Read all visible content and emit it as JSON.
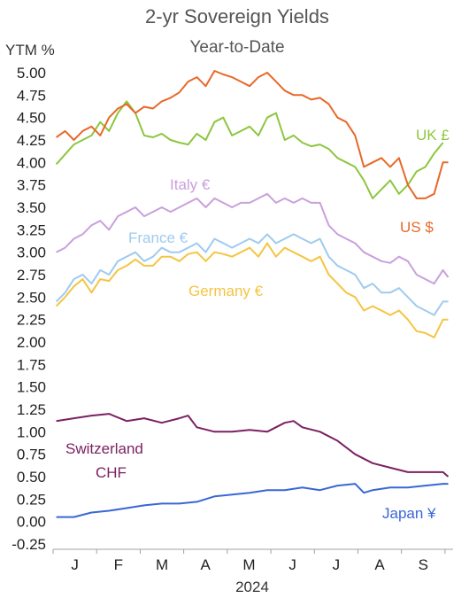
{
  "chart_data": {
    "type": "line",
    "title": "2-yr Sovereign Yields",
    "subtitle": "Year-to-Date",
    "ylabel": "YTM %",
    "xlabel": "2024",
    "ylim": [
      -0.25,
      5.0
    ],
    "yticks": [
      "5.00",
      "4.75",
      "4.50",
      "4.25",
      "4.00",
      "3.75",
      "3.50",
      "3.25",
      "3.00",
      "2.75",
      "2.50",
      "2.25",
      "2.00",
      "1.75",
      "1.50",
      "1.25",
      "1.00",
      "0.75",
      "0.50",
      "0.25",
      "0.00",
      "-0.25"
    ],
    "x_categories": [
      "J",
      "F",
      "M",
      "A",
      "M",
      "J",
      "J",
      "A",
      "S"
    ],
    "grid": false,
    "legend": "inline labels",
    "series": [
      {
        "name": "UK £",
        "color": "#8dc63f",
        "values": [
          [
            2.0,
            3.98
          ],
          [
            3.0,
            4.2
          ],
          [
            4.0,
            4.3
          ],
          [
            4.5,
            4.45
          ],
          [
            5.0,
            4.35
          ],
          [
            5.5,
            4.55
          ],
          [
            6.0,
            4.68
          ],
          [
            6.5,
            4.55
          ],
          [
            7.0,
            4.3
          ],
          [
            7.5,
            4.28
          ],
          [
            8.0,
            4.32
          ],
          [
            8.5,
            4.25
          ],
          [
            9.0,
            4.22
          ],
          [
            9.5,
            4.2
          ],
          [
            10.0,
            4.32
          ],
          [
            10.5,
            4.25
          ],
          [
            11.0,
            4.45
          ],
          [
            11.5,
            4.5
          ],
          [
            12.0,
            4.3
          ],
          [
            12.5,
            4.35
          ],
          [
            13.0,
            4.4
          ],
          [
            13.5,
            4.3
          ],
          [
            14.0,
            4.5
          ],
          [
            14.5,
            4.55
          ],
          [
            15.0,
            4.25
          ],
          [
            15.5,
            4.3
          ],
          [
            16.0,
            4.22
          ],
          [
            16.5,
            4.18
          ],
          [
            17.0,
            4.2
          ],
          [
            17.5,
            4.15
          ],
          [
            18.0,
            4.05
          ],
          [
            18.5,
            4.0
          ],
          [
            19.0,
            3.95
          ],
          [
            19.5,
            3.8
          ],
          [
            20.0,
            3.6
          ],
          [
            20.5,
            3.7
          ],
          [
            21.0,
            3.8
          ],
          [
            21.5,
            3.65
          ],
          [
            22.0,
            3.75
          ],
          [
            22.5,
            3.9
          ],
          [
            23.0,
            3.95
          ],
          [
            23.5,
            4.1
          ],
          [
            24.0,
            4.22
          ]
        ]
      },
      {
        "name": "US $",
        "color": "#e8682a",
        "values": [
          [
            2.0,
            4.28
          ],
          [
            2.5,
            4.35
          ],
          [
            3.0,
            4.25
          ],
          [
            3.5,
            4.35
          ],
          [
            4.0,
            4.4
          ],
          [
            4.5,
            4.3
          ],
          [
            5.0,
            4.5
          ],
          [
            5.5,
            4.6
          ],
          [
            6.0,
            4.65
          ],
          [
            6.5,
            4.55
          ],
          [
            7.0,
            4.62
          ],
          [
            7.5,
            4.6
          ],
          [
            8.0,
            4.68
          ],
          [
            8.5,
            4.72
          ],
          [
            9.0,
            4.78
          ],
          [
            9.5,
            4.9
          ],
          [
            10.0,
            4.95
          ],
          [
            10.5,
            4.85
          ],
          [
            11.0,
            5.02
          ],
          [
            11.5,
            4.98
          ],
          [
            12.0,
            4.95
          ],
          [
            12.5,
            4.9
          ],
          [
            13.0,
            4.85
          ],
          [
            13.5,
            4.95
          ],
          [
            14.0,
            5.0
          ],
          [
            14.5,
            4.9
          ],
          [
            15.0,
            4.8
          ],
          [
            15.5,
            4.75
          ],
          [
            16.0,
            4.75
          ],
          [
            16.5,
            4.7
          ],
          [
            17.0,
            4.72
          ],
          [
            17.5,
            4.65
          ],
          [
            18.0,
            4.5
          ],
          [
            18.5,
            4.45
          ],
          [
            19.0,
            4.3
          ],
          [
            19.5,
            3.95
          ],
          [
            20.0,
            4.0
          ],
          [
            20.5,
            4.05
          ],
          [
            21.0,
            3.95
          ],
          [
            21.5,
            4.05
          ],
          [
            22.0,
            3.75
          ],
          [
            22.5,
            3.6
          ],
          [
            23.0,
            3.6
          ],
          [
            23.5,
            3.65
          ],
          [
            24.0,
            4.0
          ],
          [
            24.3,
            4.0
          ]
        ]
      },
      {
        "name": "Italy €",
        "color": "#c9a0dc",
        "values": [
          [
            2.0,
            3.0
          ],
          [
            2.5,
            3.05
          ],
          [
            3.0,
            3.15
          ],
          [
            3.5,
            3.2
          ],
          [
            4.0,
            3.3
          ],
          [
            4.5,
            3.35
          ],
          [
            5.0,
            3.25
          ],
          [
            5.5,
            3.4
          ],
          [
            6.0,
            3.45
          ],
          [
            6.5,
            3.5
          ],
          [
            7.0,
            3.4
          ],
          [
            7.5,
            3.45
          ],
          [
            8.0,
            3.5
          ],
          [
            8.5,
            3.45
          ],
          [
            9.0,
            3.5
          ],
          [
            9.5,
            3.55
          ],
          [
            10.0,
            3.6
          ],
          [
            10.5,
            3.5
          ],
          [
            11.0,
            3.6
          ],
          [
            11.5,
            3.55
          ],
          [
            12.0,
            3.5
          ],
          [
            12.5,
            3.55
          ],
          [
            13.0,
            3.55
          ],
          [
            13.5,
            3.6
          ],
          [
            14.0,
            3.65
          ],
          [
            14.5,
            3.55
          ],
          [
            15.0,
            3.6
          ],
          [
            15.5,
            3.55
          ],
          [
            16.0,
            3.6
          ],
          [
            16.5,
            3.55
          ],
          [
            17.0,
            3.55
          ],
          [
            17.5,
            3.3
          ],
          [
            18.0,
            3.2
          ],
          [
            18.5,
            3.15
          ],
          [
            19.0,
            3.1
          ],
          [
            19.5,
            3.0
          ],
          [
            20.0,
            2.95
          ],
          [
            20.5,
            2.9
          ],
          [
            21.0,
            2.88
          ],
          [
            21.5,
            2.95
          ],
          [
            22.0,
            2.9
          ],
          [
            22.5,
            2.75
          ],
          [
            23.0,
            2.7
          ],
          [
            23.5,
            2.65
          ],
          [
            24.0,
            2.8
          ],
          [
            24.3,
            2.72
          ]
        ]
      },
      {
        "name": "France €",
        "color": "#9ecbef",
        "values": [
          [
            2.0,
            2.45
          ],
          [
            2.5,
            2.55
          ],
          [
            3.0,
            2.7
          ],
          [
            3.5,
            2.75
          ],
          [
            4.0,
            2.65
          ],
          [
            4.5,
            2.8
          ],
          [
            5.0,
            2.75
          ],
          [
            5.5,
            2.9
          ],
          [
            6.0,
            2.95
          ],
          [
            6.5,
            3.0
          ],
          [
            7.0,
            2.9
          ],
          [
            7.5,
            2.95
          ],
          [
            8.0,
            3.05
          ],
          [
            8.5,
            3.0
          ],
          [
            9.0,
            3.0
          ],
          [
            9.5,
            3.05
          ],
          [
            10.0,
            3.1
          ],
          [
            10.5,
            3.0
          ],
          [
            11.0,
            3.15
          ],
          [
            11.5,
            3.1
          ],
          [
            12.0,
            3.05
          ],
          [
            12.5,
            3.1
          ],
          [
            13.0,
            3.15
          ],
          [
            13.5,
            3.1
          ],
          [
            14.0,
            3.2
          ],
          [
            14.5,
            3.1
          ],
          [
            15.0,
            3.15
          ],
          [
            15.5,
            3.2
          ],
          [
            16.0,
            3.15
          ],
          [
            16.5,
            3.1
          ],
          [
            17.0,
            3.15
          ],
          [
            17.5,
            2.95
          ],
          [
            18.0,
            2.85
          ],
          [
            18.5,
            2.8
          ],
          [
            19.0,
            2.75
          ],
          [
            19.5,
            2.6
          ],
          [
            20.0,
            2.65
          ],
          [
            20.5,
            2.55
          ],
          [
            21.0,
            2.55
          ],
          [
            21.5,
            2.6
          ],
          [
            22.0,
            2.5
          ],
          [
            22.5,
            2.4
          ],
          [
            23.0,
            2.35
          ],
          [
            23.5,
            2.3
          ],
          [
            24.0,
            2.45
          ],
          [
            24.3,
            2.45
          ]
        ]
      },
      {
        "name": "Germany €",
        "color": "#f4c542",
        "values": [
          [
            2.0,
            2.4
          ],
          [
            2.5,
            2.5
          ],
          [
            3.0,
            2.62
          ],
          [
            3.5,
            2.7
          ],
          [
            4.0,
            2.55
          ],
          [
            4.5,
            2.7
          ],
          [
            5.0,
            2.68
          ],
          [
            5.5,
            2.8
          ],
          [
            6.0,
            2.85
          ],
          [
            6.5,
            2.92
          ],
          [
            7.0,
            2.85
          ],
          [
            7.5,
            2.85
          ],
          [
            8.0,
            2.95
          ],
          [
            8.5,
            2.95
          ],
          [
            9.0,
            2.9
          ],
          [
            9.5,
            2.98
          ],
          [
            10.0,
            3.0
          ],
          [
            10.5,
            2.9
          ],
          [
            11.0,
            3.0
          ],
          [
            11.5,
            2.98
          ],
          [
            12.0,
            2.95
          ],
          [
            12.5,
            3.0
          ],
          [
            13.0,
            3.05
          ],
          [
            13.5,
            2.95
          ],
          [
            14.0,
            3.1
          ],
          [
            14.5,
            2.95
          ],
          [
            15.0,
            3.05
          ],
          [
            15.5,
            3.0
          ],
          [
            16.0,
            2.95
          ],
          [
            16.5,
            2.9
          ],
          [
            17.0,
            2.95
          ],
          [
            17.5,
            2.75
          ],
          [
            18.0,
            2.65
          ],
          [
            18.5,
            2.55
          ],
          [
            19.0,
            2.5
          ],
          [
            19.5,
            2.35
          ],
          [
            20.0,
            2.4
          ],
          [
            20.5,
            2.35
          ],
          [
            21.0,
            2.3
          ],
          [
            21.5,
            2.35
          ],
          [
            22.0,
            2.25
          ],
          [
            22.5,
            2.12
          ],
          [
            23.0,
            2.1
          ],
          [
            23.5,
            2.05
          ],
          [
            24.0,
            2.25
          ],
          [
            24.3,
            2.25
          ]
        ]
      },
      {
        "name": "Switzerland CHF",
        "color": "#7b2161",
        "values": [
          [
            2.0,
            1.12
          ],
          [
            3.0,
            1.15
          ],
          [
            4.0,
            1.18
          ],
          [
            5.0,
            1.2
          ],
          [
            6.0,
            1.12
          ],
          [
            7.0,
            1.15
          ],
          [
            8.0,
            1.1
          ],
          [
            9.0,
            1.15
          ],
          [
            9.5,
            1.18
          ],
          [
            10.0,
            1.05
          ],
          [
            11.0,
            1.0
          ],
          [
            12.0,
            1.0
          ],
          [
            13.0,
            1.02
          ],
          [
            14.0,
            1.0
          ],
          [
            15.0,
            1.1
          ],
          [
            15.5,
            1.12
          ],
          [
            16.0,
            1.05
          ],
          [
            17.0,
            1.0
          ],
          [
            18.0,
            0.9
          ],
          [
            19.0,
            0.75
          ],
          [
            20.0,
            0.65
          ],
          [
            21.0,
            0.6
          ],
          [
            22.0,
            0.55
          ],
          [
            23.0,
            0.55
          ],
          [
            24.0,
            0.55
          ],
          [
            24.3,
            0.5
          ]
        ]
      },
      {
        "name": "Japan ¥",
        "color": "#3a66d6",
        "values": [
          [
            2.0,
            0.05
          ],
          [
            3.0,
            0.05
          ],
          [
            4.0,
            0.1
          ],
          [
            5.0,
            0.12
          ],
          [
            6.0,
            0.15
          ],
          [
            7.0,
            0.18
          ],
          [
            8.0,
            0.2
          ],
          [
            9.0,
            0.2
          ],
          [
            10.0,
            0.22
          ],
          [
            11.0,
            0.28
          ],
          [
            12.0,
            0.3
          ],
          [
            13.0,
            0.32
          ],
          [
            14.0,
            0.35
          ],
          [
            15.0,
            0.35
          ],
          [
            16.0,
            0.38
          ],
          [
            17.0,
            0.35
          ],
          [
            18.0,
            0.4
          ],
          [
            19.0,
            0.42
          ],
          [
            19.5,
            0.32
          ],
          [
            20.0,
            0.35
          ],
          [
            21.0,
            0.38
          ],
          [
            22.0,
            0.38
          ],
          [
            23.0,
            0.4
          ],
          [
            24.0,
            0.42
          ],
          [
            24.3,
            0.42
          ]
        ]
      }
    ]
  },
  "labels": {
    "uk": "UK £",
    "us": "US $",
    "italy": "Italy €",
    "france": "France €",
    "germany": "Germany €",
    "switzerland_line1": "Switzerland",
    "switzerland_line2": "CHF",
    "japan": "Japan ¥"
  },
  "colors": {
    "axis": "#a0a0a0",
    "negative_tick": "#ff0000"
  }
}
